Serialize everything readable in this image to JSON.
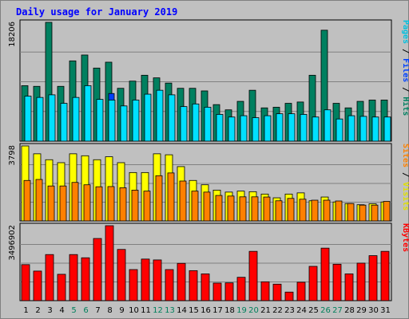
{
  "chart_data": {
    "type": "bar",
    "title": "Daily usage for January 2019",
    "days": [
      "1",
      "2",
      "3",
      "4",
      "5",
      "6",
      "7",
      "8",
      "9",
      "10",
      "11",
      "12",
      "13",
      "14",
      "15",
      "16",
      "17",
      "18",
      "19",
      "20",
      "21",
      "22",
      "23",
      "24",
      "25",
      "26",
      "27",
      "28",
      "29",
      "30",
      "31"
    ],
    "weekend_days": [
      5,
      6,
      12,
      13,
      19,
      20,
      26,
      27
    ],
    "colors": {
      "background": "#c0c0c0",
      "plot_bg": "#c0c0c0",
      "title": "#0000ff",
      "hits": "#008060",
      "files": "#0040ff",
      "pages": "#00e0ff",
      "visits": "#ffff00",
      "sites": "#ff8000",
      "kbytes": "#ff0000",
      "weekend_label": "#00805c",
      "weekday_label": "#000000"
    },
    "panels": [
      {
        "id": "hits",
        "max_label": "18206",
        "max": 18206,
        "legend": [
          {
            "text": "Pages",
            "color": "#00c0e0"
          },
          {
            "text": " / ",
            "color": "#000000"
          },
          {
            "text": "Files",
            "color": "#0040ff"
          },
          {
            "text": " / ",
            "color": "#000000"
          },
          {
            "text": "Hits",
            "color": "#008060"
          }
        ],
        "series": [
          {
            "name": "Hits",
            "color": "#008060",
            "values": [
              8500,
              8400,
              18206,
              8400,
              12300,
              13200,
              11200,
              12100,
              8100,
              9200,
              10100,
              9700,
              8900,
              8100,
              8100,
              7700,
              5600,
              4800,
              6100,
              7800,
              5100,
              5200,
              5800,
              6000,
              10100,
              17000,
              5800,
              5100,
              6100,
              6300,
              6300
            ]
          },
          {
            "name": "Files",
            "color": "#0040ff",
            "values": [
              0,
              0,
              0,
              0,
              0,
              0,
              0,
              7300,
              0,
              0,
              0,
              0,
              0,
              0,
              0,
              0,
              0,
              0,
              0,
              0,
              0,
              0,
              0,
              0,
              0,
              4700,
              0,
              0,
              0,
              0,
              0
            ]
          },
          {
            "name": "Pages",
            "color": "#00e0ff",
            "values": [
              6900,
              6700,
              7100,
              5800,
              6700,
              8500,
              6400,
              6300,
              5400,
              6300,
              7200,
              7800,
              7100,
              5300,
              5700,
              5200,
              4100,
              3700,
              3900,
              3600,
              3900,
              4200,
              4200,
              4100,
              3700,
              4800,
              3400,
              3900,
              3800,
              3700,
              3700
            ]
          }
        ]
      },
      {
        "id": "visits",
        "max_label": "3798",
        "max": 3798,
        "legend": [
          {
            "text": "Sites",
            "color": "#ff8000"
          },
          {
            "text": " / ",
            "color": "#000000"
          },
          {
            "text": "Visits",
            "color": "#e0e000"
          }
        ],
        "series": [
          {
            "name": "Visits",
            "color": "#ffff00",
            "values": [
              3798,
              3400,
              3100,
              2950,
              3400,
              3300,
              3100,
              3250,
              2950,
              2450,
              2450,
              3400,
              3350,
              2750,
              2050,
              1830,
              1560,
              1460,
              1510,
              1480,
              1360,
              1170,
              1360,
              1420,
              1020,
              1210,
              960,
              880,
              820,
              870,
              960
            ]
          },
          {
            "name": "Sites",
            "color": "#ff8000",
            "values": [
              2050,
              2100,
              1770,
              1770,
              1950,
              1830,
              1730,
              1740,
              1680,
              1560,
              1510,
              2290,
              2430,
              2020,
              1510,
              1460,
              1290,
              1260,
              1220,
              1220,
              1210,
              1020,
              1140,
              1100,
              1050,
              1050,
              1010,
              880,
              800,
              800,
              990
            ]
          }
        ]
      },
      {
        "id": "kbytes",
        "max_label": "3496902",
        "max": 3496902,
        "legend": [
          {
            "text": "KBytes",
            "color": "#ff0000"
          }
        ],
        "series": [
          {
            "name": "KBytes",
            "color": "#ff0000",
            "values": [
              1680000,
              1380000,
              2150000,
              1230000,
              2150000,
              2000000,
              2900000,
              3496902,
              2390000,
              1450000,
              1940000,
              1900000,
              1450000,
              1740000,
              1400000,
              1250000,
              820000,
              830000,
              1090000,
              2300000,
              880000,
              770000,
              400000,
              860000,
              1600000,
              2450000,
              1700000,
              1250000,
              1750000,
              2100000,
              2300000
            ]
          }
        ]
      }
    ]
  }
}
